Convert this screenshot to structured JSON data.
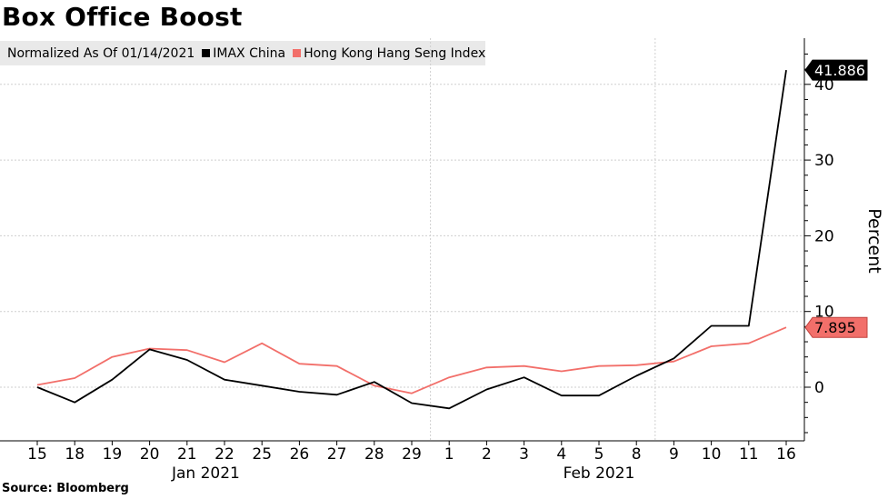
{
  "chart_data": {
    "type": "line",
    "title": "Box Office Boost",
    "subtitle": "Normalized As Of 01/14/2021",
    "ylabel": "Percent",
    "xlabel": "",
    "source": "Source: Bloomberg",
    "categories": [
      "15",
      "18",
      "19",
      "20",
      "21",
      "22",
      "25",
      "26",
      "27",
      "28",
      "29",
      "1",
      "2",
      "3",
      "4",
      "5",
      "8",
      "9",
      "10",
      "11",
      "16"
    ],
    "month_labels": [
      {
        "label": "Jan 2021",
        "at_index": 4.5
      },
      {
        "label": "Feb 2021",
        "at_index": 15
      }
    ],
    "y_ticks": [
      0,
      10,
      20,
      30,
      40
    ],
    "ylim": [
      -7,
      46
    ],
    "start_value": 0,
    "grid": true,
    "legend_position": "top-left",
    "series": [
      {
        "name": "IMAX China",
        "color": "#000000",
        "values": [
          0,
          -2,
          1,
          5,
          3.6,
          1,
          0.2,
          -0.6,
          -1,
          0.7,
          -2.1,
          -2.8,
          -0.3,
          1.3,
          -1.1,
          -1.1,
          1.5,
          3.8,
          8.1,
          8.1,
          41.886
        ],
        "last_value_label": "41.886"
      },
      {
        "name": "Hong Kong Hang Seng Index",
        "color": "#f26f6a",
        "values": [
          0.3,
          1.2,
          4,
          5.1,
          4.9,
          3.3,
          5.8,
          3.1,
          2.8,
          0.2,
          -0.8,
          1.3,
          2.6,
          2.8,
          2.1,
          2.8,
          2.9,
          3.4,
          5.4,
          5.8,
          7.895
        ],
        "last_value_label": "7.895"
      }
    ]
  }
}
